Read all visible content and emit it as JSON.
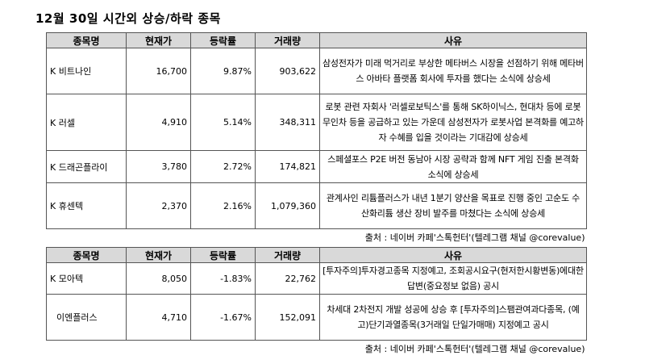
{
  "title": "12월 30일  시간외 상승/하락 종목",
  "headers": [
    "종목명",
    "현재가",
    "등락률",
    "거래량",
    "사유"
  ],
  "rise_rows": [
    {
      "name": "K 비트나인",
      "price": "16,700",
      "rate": "9.87%",
      "volume": "903,622",
      "reason": "삼성전자가 미래 먹거리로 부상한 메타버스 시장을 선점하기 위해 메타버스 아바타 플랫폼 회사에 투자를 했다는 소식에 상승세"
    },
    {
      "name": "K 러셀",
      "price": "4,910",
      "rate": "5.14%",
      "volume": "348,311",
      "reason": "로봇 관련 자회사 '러셀로보틱스'를 통해 SK하이닉스, 현대차 등에 로봇 무인차 등을 공급하고 있는 가운데 삼성전자가 로봇사업 본격화를 예고하자 수혜를 입을 것이라는 기대감에 상승세"
    },
    {
      "name": "K 드래곤플라이",
      "price": "3,780",
      "rate": "2.72%",
      "volume": "174,821",
      "reason": "스페셜포스 P2E 버전 동남아 시장 공략과 함께 NFT 게임 진출 본격화 소식에 상승세"
    },
    {
      "name": "K 휴센텍",
      "price": "2,370",
      "rate": "2.16%",
      "volume": "1,079,360",
      "reason": "관계사인 리튬플러스가 내년 1분기 양산을 목표로 진행 중인 고순도 수산화리튬 생산 장비 발주를 마쳤다는 소식에 상승세"
    }
  ],
  "fall_rows": [
    {
      "name": "K 모아텍",
      "price": "8,050",
      "rate": "-1.83%",
      "volume": "22,762",
      "reason": "[투자주의]투자경고종목 지정예고, 조회공시요구(현저한시황변동)에대한답변(중요정보 없음) 공시"
    },
    {
      "name": "이엔플러스",
      "price": "4,710",
      "rate": "-1.67%",
      "volume": "152,091",
      "reason": "차세대 2차전지 개발 성공에 상승 후 [투자주의]스팸관여과다종목, (예고)단기과열종목(3거래일 단일가매매) 지정예고 공시"
    }
  ],
  "source": "출처 : 네이버 카페'스톡헌터'(텔레그램 채널 @corevalue)"
}
